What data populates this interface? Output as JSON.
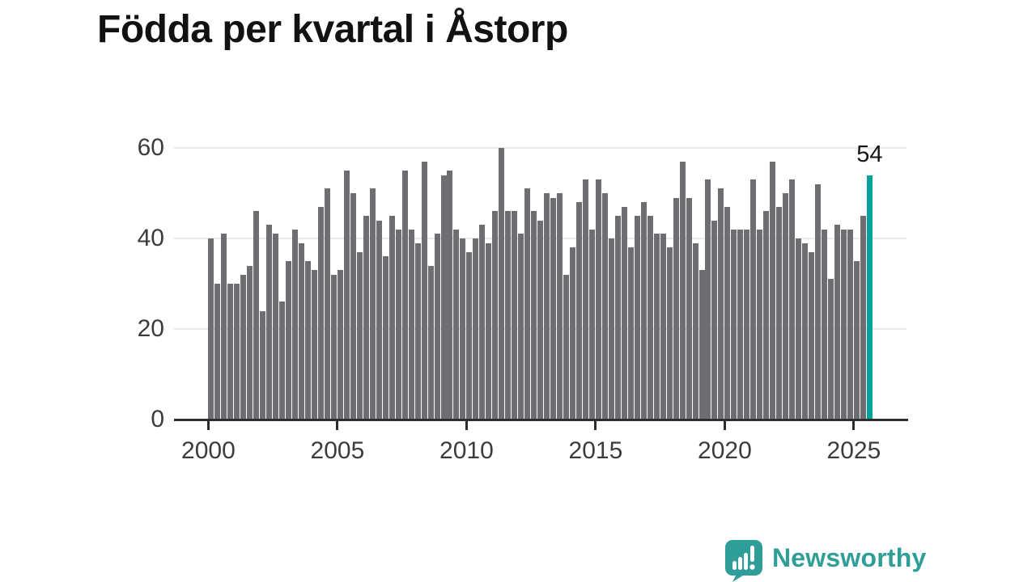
{
  "title": "Födda per kvartal i Åstorp",
  "chart_data": {
    "type": "bar",
    "title": "Födda per kvartal i Åstorp",
    "xlabel": "",
    "ylabel": "",
    "x_unit": "quarter",
    "x_start": "2000 Q1",
    "x_end": "2025 Q3",
    "ylim": [
      0,
      60
    ],
    "grid": true,
    "legend_position": "none",
    "values": [
      40,
      30,
      41,
      30,
      30,
      32,
      34,
      46,
      24,
      43,
      41,
      26,
      35,
      42,
      39,
      35,
      33,
      47,
      51,
      32,
      33,
      55,
      50,
      37,
      45,
      51,
      44,
      36,
      45,
      42,
      55,
      42,
      39,
      57,
      34,
      41,
      54,
      55,
      42,
      40,
      37,
      40,
      43,
      39,
      46,
      60,
      46,
      46,
      41,
      51,
      46,
      44,
      50,
      49,
      50,
      32,
      38,
      48,
      53,
      42,
      53,
      50,
      40,
      45,
      47,
      38,
      45,
      48,
      45,
      41,
      41,
      38,
      49,
      57,
      49,
      39,
      33,
      53,
      44,
      51,
      47,
      42,
      42,
      42,
      53,
      42,
      46,
      57,
      47,
      50,
      53,
      40,
      39,
      37,
      52,
      42,
      31,
      43,
      42,
      42,
      35,
      45,
      54
    ],
    "highlight": {
      "index_from_end": 1,
      "value": 54,
      "label": "54",
      "color": "#00a19a"
    },
    "bar_color": "#6d6d72"
  },
  "y_axis": {
    "ticks": [
      "60",
      "40",
      "20",
      "0"
    ]
  },
  "x_axis": {
    "ticks": [
      "2000",
      "2005",
      "2010",
      "2015",
      "2020",
      "2025"
    ]
  },
  "annotation": {
    "last_value_label": "54"
  },
  "logo": {
    "text": "Newsworthy",
    "icon": "newsworthy-speech-bubble-chart-icon"
  },
  "colors": {
    "bar": "#6d6d72",
    "highlight": "#00a19a",
    "gridline": "#ebebeb",
    "axis": "#2d2d2d",
    "tick_label": "#3c3c3c",
    "title": "#121212",
    "logo": "#2f9e99",
    "background": "#ffffff"
  }
}
